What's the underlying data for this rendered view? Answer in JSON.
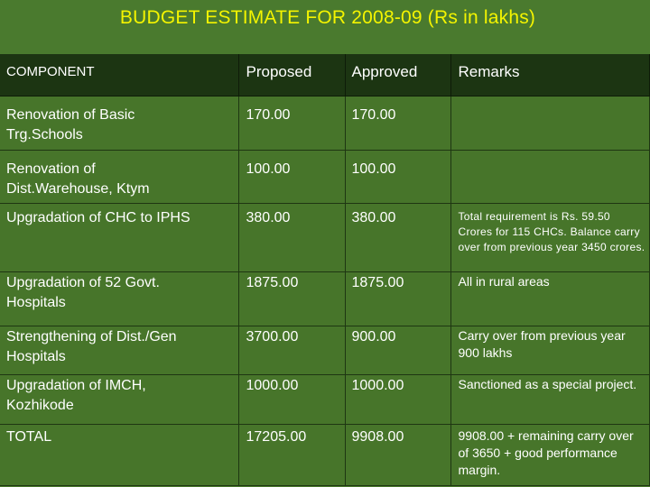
{
  "title": "BUDGET ESTIMATE FOR 2008-09 (Rs in lakhs)",
  "headers": [
    "COMPONENT",
    "Proposed",
    "Approved",
    "Remarks"
  ],
  "rows": [
    {
      "component_l1": "Renovation of Basic",
      "component_l2": "Trg.Schools",
      "proposed": "170.00",
      "approved": "170.00",
      "remarks": ""
    },
    {
      "component_l1": "Renovation of",
      "component_l2": "Dist.Warehouse, Ktym",
      "proposed": "100.00",
      "approved": "100.00",
      "remarks": ""
    },
    {
      "component_l1": "Upgradation of CHC to IPHS",
      "component_l2": "",
      "proposed": "380.00",
      "approved": "380.00",
      "remarks": "Total requirement is Rs. 59.50 Crores for 115 CHCs. Balance carry over from previous year 3450 crores."
    },
    {
      "component_l1": "Upgradation of 52 Govt.",
      "component_l2": "Hospitals",
      "proposed": "1875.00",
      "approved": "1875.00",
      "remarks": "All in rural areas"
    },
    {
      "component_l1": "Strengthening of Dist./Gen",
      "component_l2": "Hospitals",
      "proposed": "3700.00",
      "approved": "900.00",
      "remarks": "Carry over from previous year 900 lakhs"
    },
    {
      "component_l1": "Upgradation of IMCH,",
      "component_l2": "Kozhikode",
      "proposed": "1000.00",
      "approved": "1000.00",
      "remarks": "Sanctioned as a special project."
    },
    {
      "component_l1": "TOTAL",
      "component_l2": "",
      "proposed": "17205.00",
      "approved": "9908.00",
      "remarks": "9908.00 + remaining carry over of 3650 + good performance margin."
    }
  ],
  "colors": {
    "background": "#4a7a2e",
    "header_bg": "#1c3512",
    "title": "#f4f400",
    "text": "#ffffff"
  }
}
